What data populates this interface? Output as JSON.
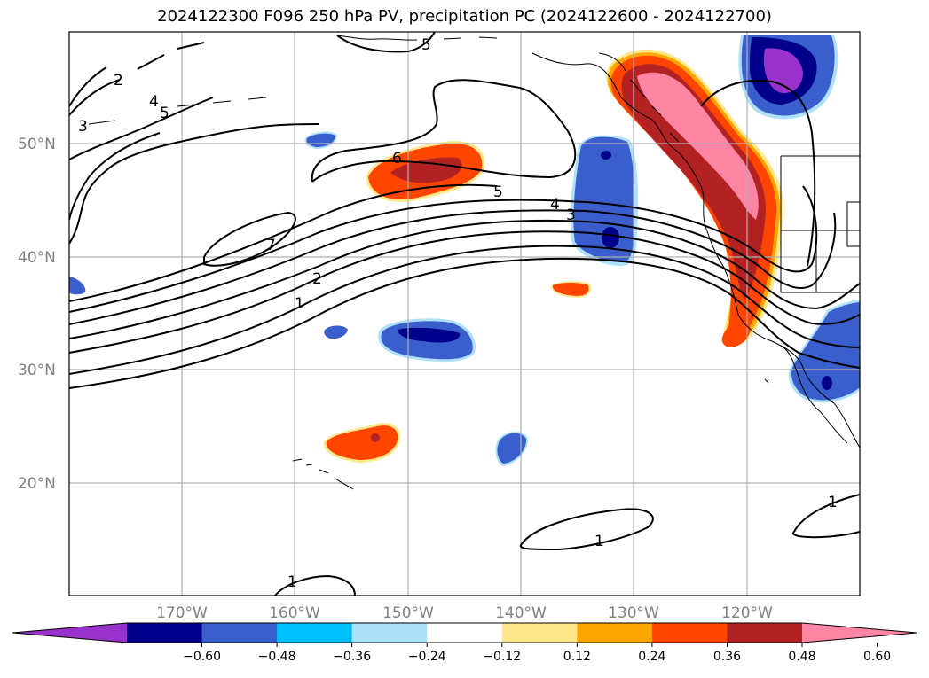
{
  "title": "2024122300 F096 250 hPa PV, precipitation PC (2024122600 - 2024122700)",
  "lat_labels": [
    "50°N",
    "40°N",
    "30°N",
    "20°N"
  ],
  "lon_labels": [
    "170°W",
    "160°W",
    "150°W",
    "140°W",
    "130°W",
    "120°W"
  ],
  "colorbar": {
    "tick_labels": [
      "−0.60",
      "−0.48",
      "−0.36",
      "−0.24",
      "−0.12",
      "0.12",
      "0.24",
      "0.36",
      "0.48",
      "0.60"
    ],
    "colors": [
      "#9932cc",
      "#00008b",
      "#3a5fcd",
      "#00bfff",
      "#afe0fa",
      "#ffffff",
      "#ffe88c",
      "#ffa500",
      "#ff4500",
      "#b22222",
      "#ff85a5"
    ]
  },
  "contour_labels": [
    "2",
    "3",
    "4",
    "5",
    "5",
    "6",
    "5",
    "4",
    "3",
    "7",
    "2",
    "1",
    "1",
    "1",
    "1"
  ]
}
